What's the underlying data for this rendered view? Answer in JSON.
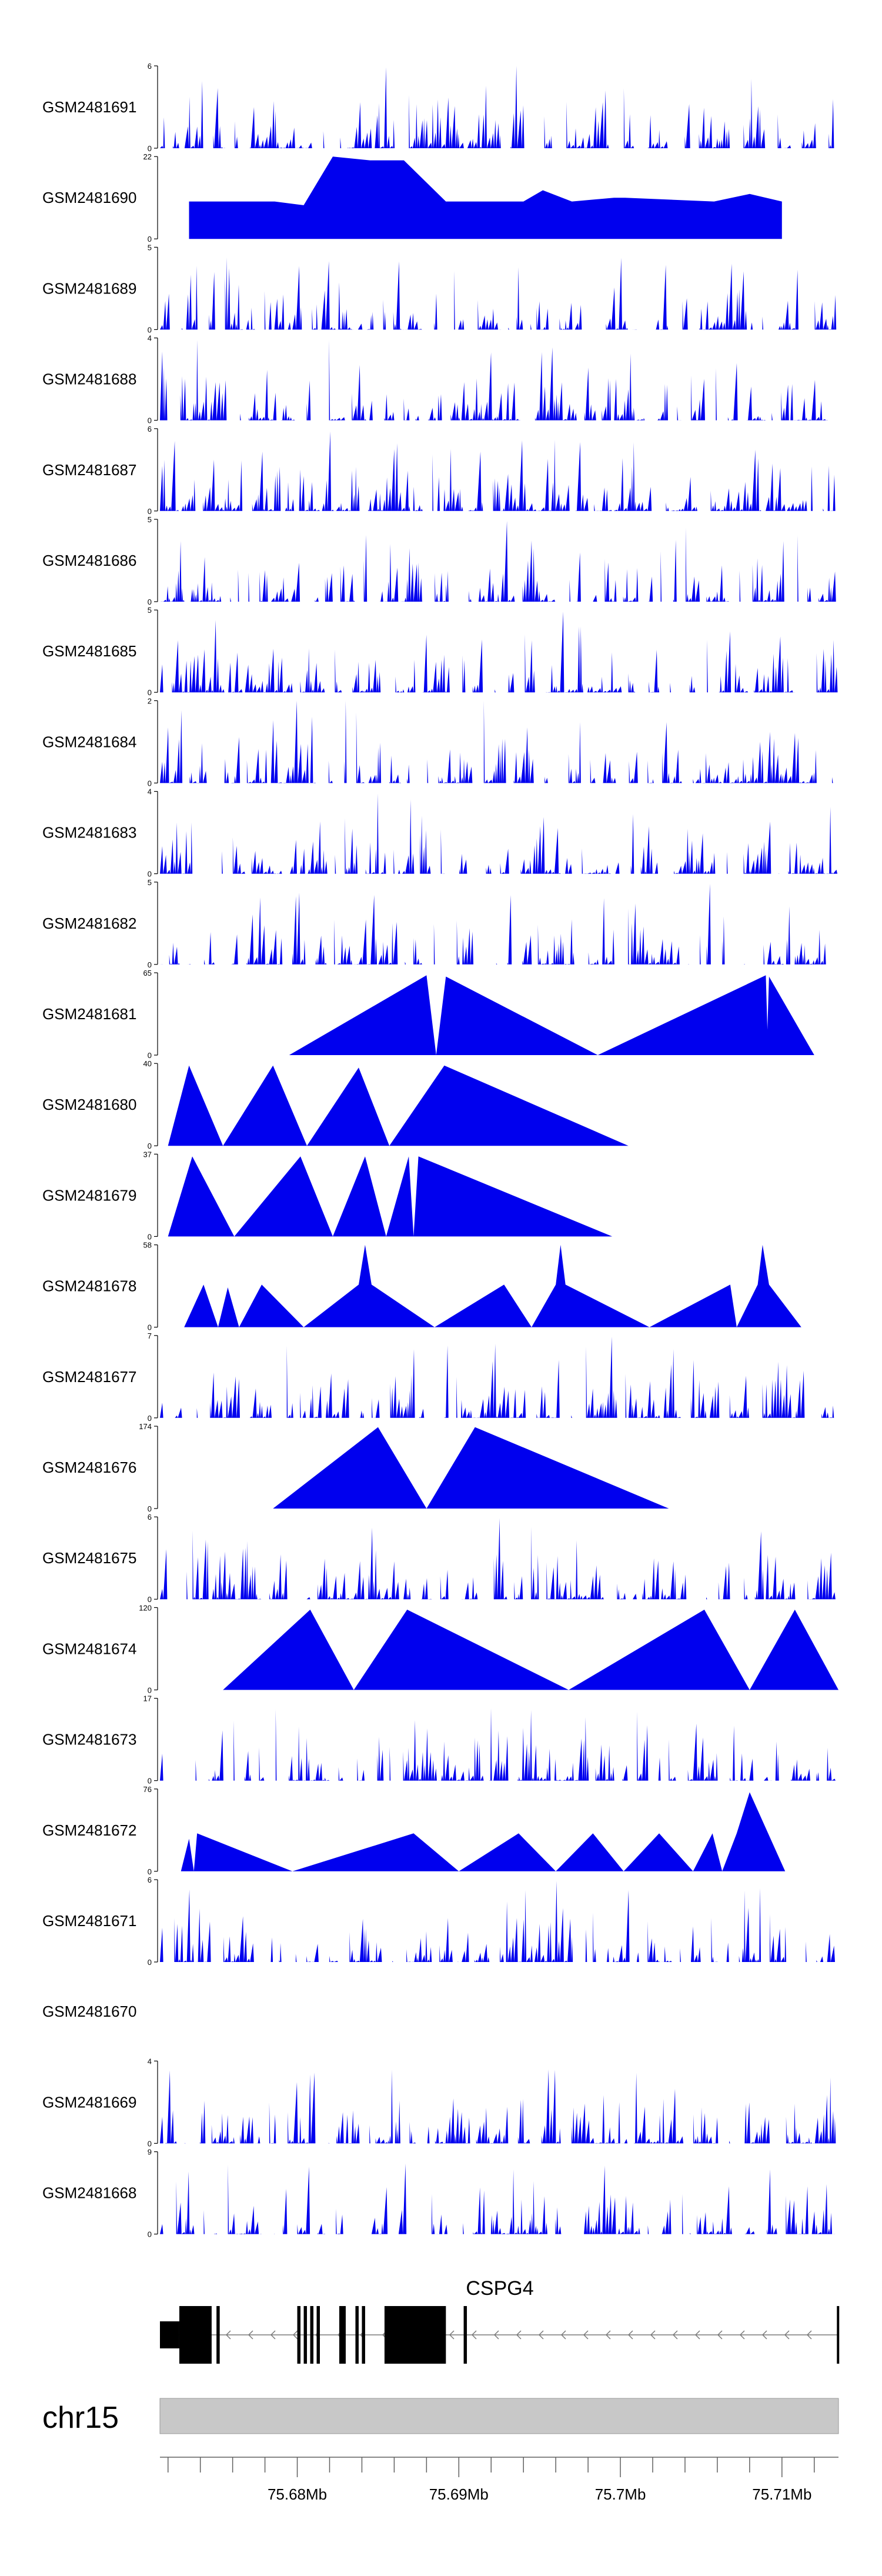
{
  "colors": {
    "signal": "#0000ee",
    "axis": "#000000",
    "ideogram": "#c8c8c8",
    "gene": "#000000",
    "intron_arrow": "#7a7a7a"
  },
  "chart_data": {
    "type": "area",
    "region": {
      "chrom": "chr15",
      "start_mb": 75.6715,
      "end_mb": 75.7135
    },
    "x_ticks": [
      "75.68Mb",
      "75.69Mb",
      "75.7Mb",
      "75.71Mb"
    ],
    "x_tick_values": [
      75.68,
      75.69,
      75.7,
      75.71
    ],
    "tracks": [
      {
        "name": "GSM2481691",
        "ymax": "6",
        "ymin": "0",
        "max": 6,
        "style": "dense",
        "seed": 11,
        "peaks": [
          [
            75.6855,
            5.9
          ],
          [
            75.6935,
            6.0
          ],
          [
            75.7125,
            4.5
          ],
          [
            75.6745,
            4.4
          ]
        ]
      },
      {
        "name": "GSM2481690",
        "ymax": "22",
        "ymin": "0",
        "max": 22,
        "style": "sparse",
        "peaks": [
          [
            75.6733,
            10
          ],
          [
            75.6753,
            10
          ],
          [
            75.6772,
            10
          ],
          [
            75.6786,
            10
          ],
          [
            75.6804,
            9
          ],
          [
            75.6822,
            22
          ],
          [
            75.6845,
            21
          ],
          [
            75.6866,
            21
          ],
          [
            75.6892,
            10
          ],
          [
            75.6902,
            10
          ],
          [
            75.692,
            10
          ],
          [
            75.694,
            10
          ],
          [
            75.6952,
            13
          ],
          [
            75.697,
            10
          ],
          [
            75.6996,
            11
          ],
          [
            75.7003,
            11
          ],
          [
            75.7058,
            10
          ],
          [
            75.708,
            12
          ],
          [
            75.71,
            10
          ]
        ]
      },
      {
        "name": "GSM2481689",
        "ymax": "5",
        "ymin": "0",
        "max": 5,
        "style": "dense",
        "seed": 23,
        "peaks": [
          [
            75.707,
            4.8
          ],
          [
            75.6755,
            3.2
          ],
          [
            75.69,
            3.5
          ]
        ]
      },
      {
        "name": "GSM2481688",
        "ymax": "4",
        "ymin": "0",
        "max": 4,
        "style": "dense",
        "seed": 31,
        "peaks": [
          [
            75.6738,
            3.9
          ],
          [
            75.682,
            3.9
          ],
          [
            75.694,
            3.4
          ],
          [
            75.692,
            3.3
          ]
        ]
      },
      {
        "name": "GSM2481687",
        "ymax": "6",
        "ymin": "0",
        "max": 6,
        "style": "dense",
        "seed": 41,
        "peaks": [
          [
            75.682,
            5.8
          ],
          [
            75.686,
            4.5
          ],
          [
            75.6955,
            3.8
          ]
        ]
      },
      {
        "name": "GSM2481686",
        "ymax": "5",
        "ymin": "0",
        "max": 5,
        "style": "dense",
        "seed": 53,
        "peaks": [
          [
            75.693,
            4.9
          ],
          [
            75.682,
            4.2
          ],
          [
            75.6858,
            3.5
          ]
        ]
      },
      {
        "name": "GSM2481685",
        "ymax": "5",
        "ymin": "0",
        "max": 5,
        "style": "dense",
        "seed": 61,
        "peaks": [
          [
            75.6965,
            4.9
          ],
          [
            75.6975,
            4.0
          ],
          [
            75.688,
            3.5
          ]
        ]
      },
      {
        "name": "GSM2481684",
        "ymax": "2",
        "ymin": "0",
        "max": 2,
        "style": "dense",
        "seed": 71,
        "peaks": [
          [
            75.683,
            2.0
          ],
          [
            75.6915,
            2.0
          ],
          [
            75.68,
            2.0
          ]
        ]
      },
      {
        "name": "GSM2481683",
        "ymax": "4",
        "ymin": "0",
        "max": 4,
        "style": "dense",
        "seed": 83,
        "peaks": [
          [
            75.685,
            3.9
          ],
          [
            75.687,
            3.6
          ],
          [
            75.696,
            3.4
          ]
        ]
      },
      {
        "name": "GSM2481682",
        "ymax": "5",
        "ymin": "0",
        "max": 5,
        "style": "dense",
        "seed": 97,
        "peaks": [
          [
            75.7055,
            4.9
          ],
          [
            75.6738,
            3.8
          ],
          [
            75.706,
            4.0
          ]
        ]
      },
      {
        "name": "GSM2481681",
        "ymax": "65",
        "ymin": "0",
        "max": 65,
        "style": "sparse",
        "peaks": [
          [
            75.6795,
            0
          ],
          [
            75.688,
            63
          ],
          [
            75.6886,
            0
          ],
          [
            75.6892,
            62
          ],
          [
            75.6986,
            0
          ],
          [
            75.709,
            63
          ],
          [
            75.7091,
            20
          ],
          [
            75.7092,
            62
          ],
          [
            75.712,
            0
          ]
        ]
      },
      {
        "name": "GSM2481680",
        "ymax": "40",
        "ymin": "0",
        "max": 40,
        "style": "sparse",
        "peaks": [
          [
            75.672,
            0
          ],
          [
            75.6733,
            39
          ],
          [
            75.6754,
            0
          ],
          [
            75.6785,
            39
          ],
          [
            75.6806,
            0
          ],
          [
            75.6838,
            38
          ],
          [
            75.6857,
            0
          ],
          [
            75.6891,
            39
          ],
          [
            75.7005,
            0
          ]
        ]
      },
      {
        "name": "GSM2481679",
        "ymax": "37",
        "ymin": "0",
        "max": 37,
        "style": "sparse",
        "peaks": [
          [
            75.672,
            0
          ],
          [
            75.6735,
            36
          ],
          [
            75.6761,
            0
          ],
          [
            75.6802,
            36
          ],
          [
            75.6822,
            0
          ],
          [
            75.6842,
            36
          ],
          [
            75.6855,
            0
          ],
          [
            75.6869,
            36
          ],
          [
            75.6872,
            0
          ],
          [
            75.6875,
            36
          ],
          [
            75.6995,
            0
          ]
        ]
      },
      {
        "name": "GSM2481678",
        "ymax": "58",
        "ymin": "0",
        "max": 58,
        "style": "sparse",
        "peaks": [
          [
            75.673,
            0
          ],
          [
            75.6742,
            30
          ],
          [
            75.6751,
            0
          ],
          [
            75.6757,
            28
          ],
          [
            75.6764,
            0
          ],
          [
            75.6778,
            30
          ],
          [
            75.6804,
            0
          ],
          [
            75.6838,
            30
          ],
          [
            75.6842,
            58
          ],
          [
            75.6846,
            30
          ],
          [
            75.6885,
            0
          ],
          [
            75.6928,
            30
          ],
          [
            75.6945,
            0
          ],
          [
            75.696,
            30
          ],
          [
            75.6963,
            58
          ],
          [
            75.6966,
            30
          ],
          [
            75.7018,
            0
          ],
          [
            75.7068,
            30
          ],
          [
            75.7072,
            0
          ],
          [
            75.7085,
            30
          ],
          [
            75.7088,
            58
          ],
          [
            75.7092,
            30
          ],
          [
            75.7112,
            0
          ]
        ]
      },
      {
        "name": "GSM2481677",
        "ymax": "7",
        "ymin": "0",
        "max": 7,
        "style": "dense",
        "seed": 103,
        "peaks": [
          [
            75.6995,
            6.9
          ],
          [
            75.683,
            2.5
          ]
        ]
      },
      {
        "name": "GSM2481676",
        "ymax": "174",
        "ymin": "0",
        "max": 174,
        "style": "sparse",
        "peaks": [
          [
            75.6785,
            0
          ],
          [
            75.685,
            172
          ],
          [
            75.688,
            0
          ],
          [
            75.691,
            172
          ],
          [
            75.703,
            0
          ]
        ]
      },
      {
        "name": "GSM2481675",
        "ymax": "6",
        "ymin": "0",
        "max": 6,
        "style": "dense",
        "seed": 113,
        "peaks": [
          [
            75.6925,
            5.9
          ],
          [
            75.6735,
            5.0
          ],
          [
            75.6745,
            4.2
          ]
        ]
      },
      {
        "name": "GSM2481674",
        "ymax": "120",
        "ymin": "0",
        "max": 120,
        "style": "sparse",
        "peaks": [
          [
            75.6754,
            0
          ],
          [
            75.6808,
            117
          ],
          [
            75.6835,
            0
          ],
          [
            75.6868,
            117
          ],
          [
            75.6968,
            0
          ],
          [
            75.7052,
            117
          ],
          [
            75.708,
            0
          ],
          [
            75.7108,
            117
          ],
          [
            75.7135,
            0
          ]
        ]
      },
      {
        "name": "GSM2481673",
        "ymax": "17",
        "ymin": "0",
        "max": 17,
        "style": "dense",
        "seed": 127,
        "peaks": [
          [
            75.6852,
            16.5
          ],
          [
            75.686,
            9.0
          ],
          [
            75.6935,
            8.0
          ]
        ]
      },
      {
        "name": "GSM2481672",
        "ymax": "76",
        "ymin": "0",
        "max": 76,
        "style": "sparse",
        "peaks": [
          [
            75.6728,
            0
          ],
          [
            75.6733,
            30
          ],
          [
            75.6736,
            0
          ],
          [
            75.6738,
            35
          ],
          [
            75.6797,
            0
          ],
          [
            75.6872,
            35
          ],
          [
            75.69,
            0
          ],
          [
            75.6937,
            35
          ],
          [
            75.696,
            0
          ],
          [
            75.6983,
            35
          ],
          [
            75.7002,
            0
          ],
          [
            75.7024,
            35
          ],
          [
            75.7045,
            0
          ],
          [
            75.7057,
            35
          ],
          [
            75.7063,
            0
          ],
          [
            75.7072,
            35
          ],
          [
            75.708,
            73
          ],
          [
            75.7102,
            0
          ]
        ]
      },
      {
        "name": "GSM2481671",
        "ymax": "6",
        "ymin": "0",
        "max": 6,
        "style": "dense",
        "seed": 139,
        "peaks": [
          [
            75.696,
            5.9
          ],
          [
            75.692,
            5.5
          ],
          [
            75.685,
            5.0
          ]
        ]
      },
      {
        "name": "GSM2481670",
        "ymax": "",
        "ymin": "",
        "max": 1,
        "style": "empty",
        "peaks": []
      },
      {
        "name": "GSM2481669",
        "ymax": "4",
        "ymin": "0",
        "max": 4,
        "style": "dense",
        "seed": 149,
        "peaks": [
          [
            75.6935,
            3.9
          ],
          [
            75.713,
            3.2
          ],
          [
            75.695,
            3.5
          ]
        ]
      },
      {
        "name": "GSM2481668",
        "ymax": "9",
        "ymin": "0",
        "max": 9,
        "style": "dense",
        "seed": 157,
        "peaks": [
          [
            75.6872,
            8.8
          ],
          [
            75.686,
            6.0
          ],
          [
            75.699,
            6.5
          ]
        ]
      }
    ],
    "gene": {
      "name": "CSPG4",
      "strand": "-",
      "start_mb": 75.6715,
      "end_mb": 75.7135,
      "exons": [
        [
          75.6715,
          75.6727,
          "utr"
        ],
        [
          75.6727,
          75.6747,
          "cds"
        ],
        [
          75.675,
          75.6752,
          "cds"
        ],
        [
          75.68,
          75.6802,
          "cds"
        ],
        [
          75.6804,
          75.6806,
          "cds"
        ],
        [
          75.6808,
          75.681,
          "cds"
        ],
        [
          75.6812,
          75.6814,
          "cds"
        ],
        [
          75.6826,
          75.683,
          "cds"
        ],
        [
          75.6836,
          75.6838,
          "cds"
        ],
        [
          75.684,
          75.6842,
          "cds"
        ],
        [
          75.6854,
          75.6892,
          "cds"
        ],
        [
          75.6903,
          75.6905,
          "cds"
        ],
        [
          75.7134,
          75.7135,
          "cds"
        ]
      ]
    }
  }
}
